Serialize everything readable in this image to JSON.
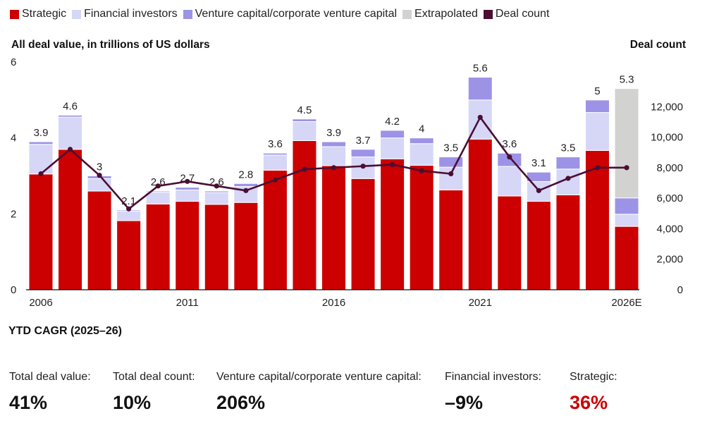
{
  "legend": [
    {
      "label": "Strategic",
      "color": "#cc0000"
    },
    {
      "label": "Financial investors",
      "color": "#d6d6f7"
    },
    {
      "label": "Venture capital/corporate venture capital",
      "color": "#9d93e6"
    },
    {
      "label": "Extrapolated",
      "color": "#d2d2d0"
    },
    {
      "label": "Deal count",
      "color": "#4a0f33"
    }
  ],
  "axis": {
    "left_title": "All deal value, in trillions of US dollars",
    "right_title": "Deal count"
  },
  "chart_data": {
    "type": "bar",
    "stacked": true,
    "categories": [
      "2006",
      "2007",
      "2008",
      "2009",
      "2010",
      "2011",
      "2012",
      "2013",
      "2014",
      "2015",
      "2016",
      "2017",
      "2018",
      "2019",
      "2020",
      "2021",
      "2022",
      "2023",
      "2024",
      "2025",
      "2026E"
    ],
    "x_tick_labels": [
      "2006",
      "",
      "",
      "",
      "",
      "2011",
      "",
      "",
      "",
      "",
      "2016",
      "",
      "",
      "",
      "",
      "2021",
      "",
      "",
      "",
      "",
      "2026E"
    ],
    "series": [
      {
        "name": "Strategic",
        "color": "#cc0000",
        "values": [
          3.05,
          3.7,
          2.6,
          1.82,
          2.26,
          2.33,
          2.25,
          2.3,
          3.15,
          3.93,
          3.27,
          2.93,
          3.45,
          3.28,
          2.63,
          3.97,
          2.47,
          2.33,
          2.5,
          3.67,
          1.67
        ]
      },
      {
        "name": "Financial investors",
        "color": "#d6d6f7",
        "values": [
          0.78,
          0.85,
          0.33,
          0.25,
          0.31,
          0.3,
          0.31,
          0.42,
          0.4,
          0.5,
          0.5,
          0.57,
          0.55,
          0.57,
          0.6,
          1.03,
          0.78,
          0.52,
          0.68,
          1.0,
          0.32
        ]
      },
      {
        "name": "Venture capital/corporate venture capital",
        "color": "#9d93e6",
        "values": [
          0.07,
          0.05,
          0.07,
          0.03,
          0.03,
          0.07,
          0.04,
          0.08,
          0.05,
          0.07,
          0.13,
          0.2,
          0.2,
          0.15,
          0.27,
          0.6,
          0.35,
          0.25,
          0.32,
          0.33,
          0.43
        ]
      },
      {
        "name": "Extrapolated",
        "color": "#d2d2d0",
        "values": [
          0,
          0,
          0,
          0,
          0,
          0,
          0,
          0,
          0,
          0,
          0,
          0,
          0,
          0,
          0,
          0,
          0,
          0,
          0,
          0,
          2.88
        ]
      }
    ],
    "totals_labels": [
      "3.9",
      "4.6",
      "3",
      "2.1",
      "2.6",
      "2.7",
      "2.6",
      "2.8",
      "3.6",
      "4.5",
      "3.9",
      "3.7",
      "4.2",
      "4",
      "3.5",
      "5.6",
      "3.6",
      "3.1",
      "3.5",
      "5",
      "5.3"
    ],
    "deal_count": {
      "name": "Deal count",
      "color": "#4a0f33",
      "values": [
        7600,
        9200,
        7500,
        5300,
        6800,
        7100,
        6800,
        6500,
        7200,
        7900,
        8000,
        8100,
        8200,
        7800,
        7600,
        11300,
        8700,
        6500,
        7300,
        8000,
        8000
      ]
    },
    "ylim": [
      0,
      6
    ],
    "y_ticks": [
      0,
      2,
      4,
      6
    ],
    "y2lim": [
      0,
      14000
    ],
    "y2_ticks": [
      "0",
      "2,000",
      "4,000",
      "6,000",
      "8,000",
      "10,000",
      "12,000"
    ],
    "y2_tick_values": [
      0,
      2000,
      4000,
      6000,
      8000,
      10000,
      12000
    ]
  },
  "stats": {
    "title": "YTD CAGR (2025–26)",
    "items": [
      {
        "label": "Total deal value:",
        "value": "41%",
        "highlight": false
      },
      {
        "label": "Total deal count:",
        "value": "10%",
        "highlight": false
      },
      {
        "label": "Venture capital/corporate venture capital:",
        "value": "206%",
        "highlight": false
      },
      {
        "label": "Financial investors:",
        "value": "–9%",
        "highlight": false
      },
      {
        "label": "Strategic:",
        "value": "36%",
        "highlight": true
      }
    ]
  }
}
